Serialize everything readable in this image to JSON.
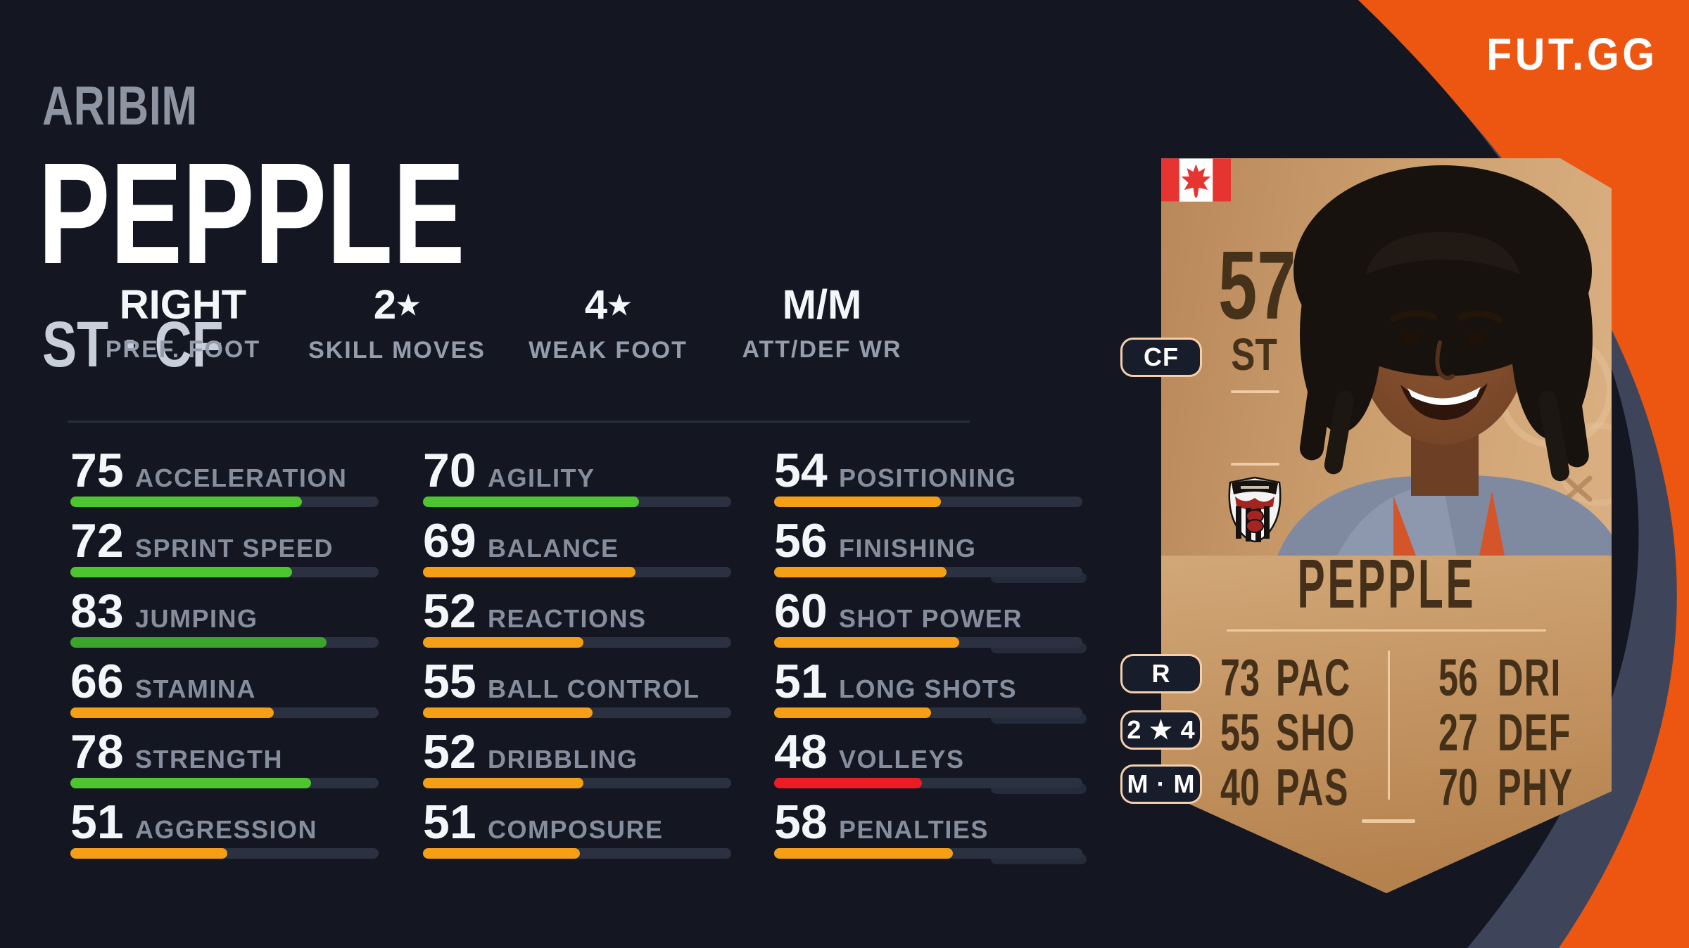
{
  "header": {
    "first_name": "ARIBIM",
    "last_name": "PEPPLE",
    "positions": "ST · CF"
  },
  "profile": [
    {
      "value": "RIGHT",
      "star": false,
      "label": "PREF. FOOT"
    },
    {
      "value": "2",
      "star": true,
      "label": "SKILL MOVES"
    },
    {
      "value": "4",
      "star": true,
      "label": "WEAK FOOT"
    },
    {
      "value": "M/M",
      "star": false,
      "label": "ATT/DEF WR"
    }
  ],
  "stats": {
    "columns": [
      [
        {
          "value": 75,
          "label": "ACCELERATION",
          "tier": "green"
        },
        {
          "value": 72,
          "label": "SPRINT SPEED",
          "tier": "green"
        },
        {
          "value": 83,
          "label": "JUMPING",
          "tier": "dark_green"
        },
        {
          "value": 66,
          "label": "STAMINA",
          "tier": "amber"
        },
        {
          "value": 78,
          "label": "STRENGTH",
          "tier": "green"
        },
        {
          "value": 51,
          "label": "AGGRESSION",
          "tier": "amber"
        }
      ],
      [
        {
          "value": 70,
          "label": "AGILITY",
          "tier": "green"
        },
        {
          "value": 69,
          "label": "BALANCE",
          "tier": "amber"
        },
        {
          "value": 52,
          "label": "REACTIONS",
          "tier": "amber"
        },
        {
          "value": 55,
          "label": "BALL CONTROL",
          "tier": "amber"
        },
        {
          "value": 52,
          "label": "DRIBBLING",
          "tier": "amber"
        },
        {
          "value": 51,
          "label": "COMPOSURE",
          "tier": "amber"
        }
      ],
      [
        {
          "value": 54,
          "label": "POSITIONING",
          "tier": "amber"
        },
        {
          "value": 56,
          "label": "FINISHING",
          "tier": "amber"
        },
        {
          "value": 60,
          "label": "SHOT POWER",
          "tier": "amber"
        },
        {
          "value": 51,
          "label": "LONG SHOTS",
          "tier": "amber"
        },
        {
          "value": 48,
          "label": "VOLLEYS",
          "tier": "red"
        },
        {
          "value": 58,
          "label": "PENALTIES",
          "tier": "amber"
        }
      ]
    ]
  },
  "card": {
    "rating": "57",
    "position": "ST",
    "alt_position": "CF",
    "name": "PEPPLE",
    "nation": "canada-flag",
    "club": "grimsby-town-crest",
    "pills": [
      "R",
      "2 ★ 4",
      "M · M"
    ],
    "left_stats": [
      {
        "value": "73",
        "label": "PAC"
      },
      {
        "value": "55",
        "label": "SHO"
      },
      {
        "value": "40",
        "label": "PAS"
      }
    ],
    "right_stats": [
      {
        "value": "56",
        "label": "DRI"
      },
      {
        "value": "27",
        "label": "DEF"
      },
      {
        "value": "70",
        "label": "PHY"
      }
    ]
  },
  "logo": "FUT.GG",
  "colors": {
    "background": "#141722",
    "orange": "#EC5610",
    "slate_band": "#3E455A",
    "bar_track": "#2B3140",
    "green": "#4CC52F",
    "dark_green": "#3AA42B",
    "amber": "#F49F16",
    "red": "#ED1C24",
    "bronze_text": "#443019",
    "cream": "#F2CBA4"
  }
}
